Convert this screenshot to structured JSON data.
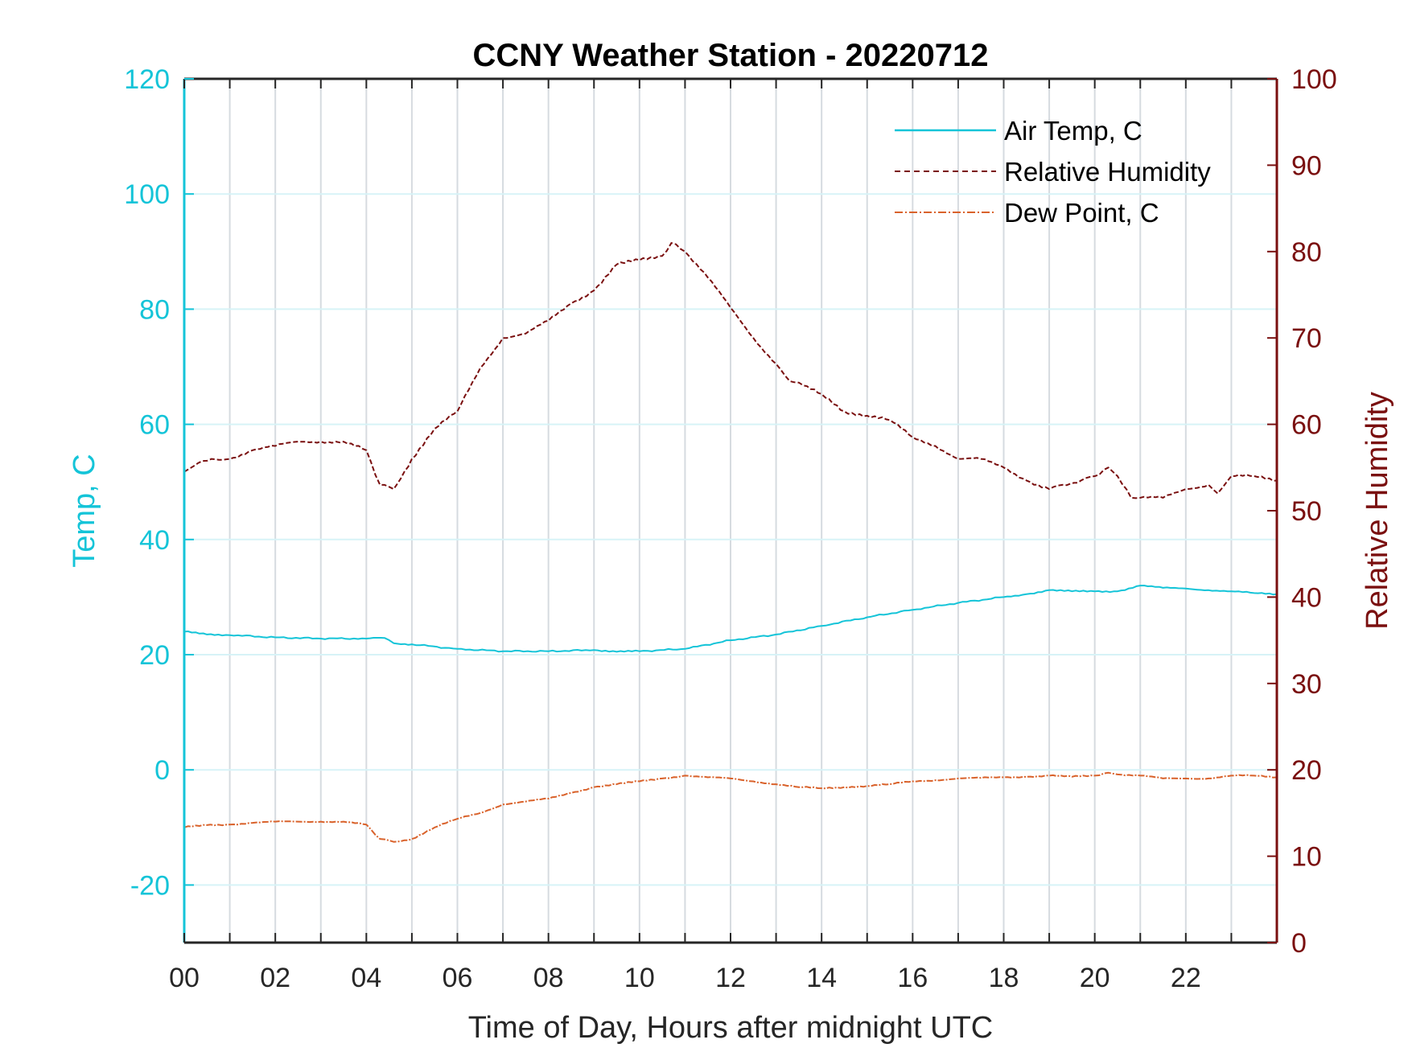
{
  "chart_data": {
    "type": "line",
    "title": "CCNY Weather Station - 20220712",
    "xlabel": "Time of Day, Hours after midnight UTC",
    "ylabel_left": "Temp, C",
    "ylabel_right": "Relative Humidity",
    "xlim": [
      0,
      24
    ],
    "ylim_left": [
      -30,
      120
    ],
    "ylim_right": [
      0,
      100
    ],
    "x_ticks": [
      0,
      2,
      4,
      6,
      8,
      10,
      12,
      14,
      16,
      18,
      20,
      22
    ],
    "x_tick_labels": [
      "00",
      "02",
      "04",
      "06",
      "08",
      "10",
      "12",
      "14",
      "16",
      "18",
      "20",
      "22"
    ],
    "y_left_ticks": [
      -20,
      0,
      20,
      40,
      60,
      80,
      100,
      120
    ],
    "y_left_tick_labels": [
      "-20",
      "0",
      "20",
      "40",
      "60",
      "80",
      "100",
      "120"
    ],
    "y_right_ticks": [
      0,
      10,
      20,
      30,
      40,
      50,
      60,
      70,
      80,
      90,
      100
    ],
    "y_right_tick_labels": [
      "0",
      "10",
      "20",
      "30",
      "40",
      "50",
      "60",
      "70",
      "80",
      "90",
      "100"
    ],
    "grid": "vertical every hour, horizontal at left ticks",
    "legend_position": "top-right",
    "colors": {
      "left_axis": "#14c4d8",
      "right_axis": "#7a0f0f",
      "air_temp": "#14c4d8",
      "relative_humidity": "#7a0f0f",
      "dew_point": "#d9622b"
    },
    "series": [
      {
        "name": "Air Temp, C",
        "axis": "left",
        "style": "solid",
        "x": [
          0,
          0.5,
          1,
          2,
          3,
          4,
          4.4,
          4.6,
          5,
          6,
          7,
          8,
          9,
          9.5,
          10,
          11,
          12,
          13,
          14,
          15,
          16,
          17,
          18,
          18.5,
          19,
          19.5,
          20,
          20.5,
          21,
          21.5,
          22,
          22.5,
          23,
          23.5,
          24
        ],
        "values": [
          24.0,
          23.5,
          23.4,
          23.0,
          22.8,
          22.8,
          22.9,
          22.0,
          21.8,
          21.0,
          20.6,
          20.6,
          20.8,
          20.5,
          20.6,
          21.0,
          22.5,
          23.5,
          25.0,
          26.5,
          27.8,
          29.0,
          30.0,
          30.5,
          31.2,
          31.0,
          31.0,
          31.0,
          32.0,
          31.6,
          31.5,
          31.2,
          31.0,
          30.7,
          30.5
        ]
      },
      {
        "name": "Relative Humidity",
        "axis": "right",
        "style": "dashed",
        "x": [
          0,
          0.3,
          0.6,
          1,
          1.5,
          2,
          2.5,
          3,
          3.5,
          4,
          4.3,
          4.6,
          5,
          5.5,
          6,
          6.5,
          7,
          7.5,
          8,
          8.5,
          9,
          9.5,
          10,
          10.5,
          10.7,
          11,
          11.5,
          12,
          12.5,
          13,
          13.3,
          13.6,
          14,
          14.5,
          15,
          15.5,
          16,
          16.5,
          17,
          17.5,
          18,
          18.5,
          19,
          19.3,
          19.7,
          20,
          20.3,
          20.5,
          20.8,
          21,
          21.5,
          22,
          22.5,
          22.7,
          23,
          23.5,
          24
        ],
        "values": [
          54.5,
          55.5,
          56.0,
          56.0,
          57.0,
          57.5,
          58.0,
          58.0,
          58.0,
          57.0,
          53.0,
          52.5,
          56.0,
          59.5,
          61.5,
          66.5,
          70.0,
          70.5,
          72.0,
          74.0,
          75.5,
          78.5,
          79.0,
          79.5,
          81.0,
          80.0,
          77.0,
          73.5,
          70.0,
          67.0,
          65.0,
          64.5,
          63.5,
          61.5,
          61.0,
          60.5,
          58.5,
          57.5,
          56.0,
          56.0,
          55.0,
          53.5,
          52.5,
          53.0,
          53.5,
          54.0,
          55.0,
          54.0,
          51.5,
          51.5,
          51.5,
          52.5,
          53.0,
          52.0,
          54.0,
          54.0,
          53.5
        ]
      },
      {
        "name": "Dew Point, C",
        "axis": "left",
        "style": "dash-dot",
        "x": [
          0,
          0.5,
          1,
          1.5,
          2,
          2.5,
          3,
          3.5,
          4,
          4.3,
          4.6,
          5,
          5.5,
          6,
          6.5,
          7,
          7.5,
          8,
          8.5,
          9,
          9.5,
          10,
          10.5,
          11,
          11.5,
          12,
          12.5,
          13,
          13.5,
          14,
          14.5,
          15,
          15.5,
          16,
          16.5,
          17,
          17.5,
          18,
          18.5,
          19,
          19.5,
          20,
          20.3,
          20.5,
          21,
          21.5,
          22,
          22.5,
          23,
          23.5,
          24
        ],
        "values": [
          -10.0,
          -9.6,
          -9.5,
          -9.2,
          -9.0,
          -9.0,
          -9.0,
          -9.0,
          -9.5,
          -12.0,
          -12.5,
          -12.0,
          -10.0,
          -8.5,
          -7.5,
          -6.0,
          -5.5,
          -5.0,
          -4.0,
          -3.0,
          -2.5,
          -2.0,
          -1.5,
          -1.0,
          -1.3,
          -1.5,
          -2.0,
          -2.5,
          -3.0,
          -3.2,
          -3.0,
          -2.8,
          -2.5,
          -2.0,
          -1.8,
          -1.5,
          -1.4,
          -1.3,
          -1.2,
          -1.0,
          -1.2,
          -1.0,
          -0.5,
          -0.8,
          -1.0,
          -1.5,
          -1.5,
          -1.5,
          -1.0,
          -1.0,
          -1.3
        ]
      }
    ]
  }
}
